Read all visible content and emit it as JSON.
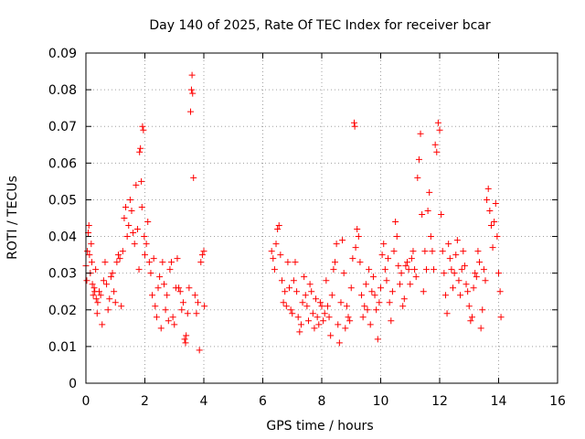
{
  "chart_data": {
    "type": "scatter",
    "title": "Day 140 of 2025, Rate Of TEC Index for receiver bcar",
    "xlabel": "GPS time / hours",
    "ylabel": "ROTI / TECUs",
    "xlim": [
      0,
      16
    ],
    "ylim": [
      0,
      0.09
    ],
    "x_ticks": [
      "0",
      "2",
      "4",
      "6",
      "8",
      "10",
      "12",
      "14",
      "16"
    ],
    "y_ticks": [
      "0",
      "0.01",
      "0.02",
      "0.03",
      "0.04",
      "0.05",
      "0.06",
      "0.07",
      "0.08",
      "0.09"
    ],
    "grid": true,
    "marker": "plus",
    "color": "#ff0000",
    "series": [
      {
        "points": [
          [
            0.0,
            0.032
          ],
          [
            0.03,
            0.028
          ],
          [
            0.05,
            0.036
          ],
          [
            0.08,
            0.041
          ],
          [
            0.1,
            0.043
          ],
          [
            0.12,
            0.035
          ],
          [
            0.15,
            0.03
          ],
          [
            0.18,
            0.038
          ],
          [
            0.2,
            0.033
          ],
          [
            0.22,
            0.027
          ],
          [
            0.25,
            0.024
          ],
          [
            0.28,
            0.026
          ],
          [
            0.3,
            0.025
          ],
          [
            0.33,
            0.031
          ],
          [
            0.35,
            0.023
          ],
          [
            0.38,
            0.019
          ],
          [
            0.4,
            0.022
          ],
          [
            0.45,
            0.025
          ],
          [
            0.5,
            0.024
          ],
          [
            0.55,
            0.016
          ],
          [
            0.6,
            0.028
          ],
          [
            0.65,
            0.033
          ],
          [
            0.7,
            0.027
          ],
          [
            0.75,
            0.02
          ],
          [
            0.8,
            0.023
          ],
          [
            0.85,
            0.029
          ],
          [
            0.9,
            0.03
          ],
          [
            0.95,
            0.025
          ],
          [
            1.0,
            0.022
          ],
          [
            1.05,
            0.033
          ],
          [
            1.1,
            0.035
          ],
          [
            1.15,
            0.034
          ],
          [
            1.2,
            0.021
          ],
          [
            1.25,
            0.036
          ],
          [
            1.3,
            0.045
          ],
          [
            1.35,
            0.048
          ],
          [
            1.4,
            0.04
          ],
          [
            1.45,
            0.043
          ],
          [
            1.5,
            0.05
          ],
          [
            1.55,
            0.047
          ],
          [
            1.6,
            0.041
          ],
          [
            1.65,
            0.038
          ],
          [
            1.7,
            0.054
          ],
          [
            1.75,
            0.042
          ],
          [
            1.8,
            0.031
          ],
          [
            1.82,
            0.063
          ],
          [
            1.85,
            0.064
          ],
          [
            1.88,
            0.055
          ],
          [
            1.9,
            0.048
          ],
          [
            1.92,
            0.07
          ],
          [
            1.95,
            0.069
          ],
          [
            1.98,
            0.04
          ],
          [
            2.0,
            0.035
          ],
          [
            2.05,
            0.038
          ],
          [
            2.1,
            0.044
          ],
          [
            2.15,
            0.033
          ],
          [
            2.2,
            0.03
          ],
          [
            2.25,
            0.024
          ],
          [
            2.3,
            0.034
          ],
          [
            2.35,
            0.021
          ],
          [
            2.4,
            0.018
          ],
          [
            2.45,
            0.026
          ],
          [
            2.5,
            0.029
          ],
          [
            2.55,
            0.015
          ],
          [
            2.6,
            0.033
          ],
          [
            2.65,
            0.027
          ],
          [
            2.7,
            0.02
          ],
          [
            2.75,
            0.024
          ],
          [
            2.8,
            0.017
          ],
          [
            2.85,
            0.031
          ],
          [
            2.9,
            0.033
          ],
          [
            2.95,
            0.018
          ],
          [
            3.0,
            0.016
          ],
          [
            3.05,
            0.026
          ],
          [
            3.1,
            0.034
          ],
          [
            3.15,
            0.026
          ],
          [
            3.2,
            0.025
          ],
          [
            3.25,
            0.02
          ],
          [
            3.3,
            0.022
          ],
          [
            3.35,
            0.012
          ],
          [
            3.38,
            0.011
          ],
          [
            3.4,
            0.013
          ],
          [
            3.45,
            0.019
          ],
          [
            3.5,
            0.026
          ],
          [
            3.55,
            0.074
          ],
          [
            3.58,
            0.08
          ],
          [
            3.6,
            0.084
          ],
          [
            3.62,
            0.079
          ],
          [
            3.65,
            0.056
          ],
          [
            3.7,
            0.024
          ],
          [
            3.75,
            0.019
          ],
          [
            3.8,
            0.022
          ],
          [
            3.85,
            0.009
          ],
          [
            3.9,
            0.033
          ],
          [
            3.95,
            0.035
          ],
          [
            4.0,
            0.036
          ],
          [
            4.02,
            0.021
          ],
          [
            6.3,
            0.036
          ],
          [
            6.35,
            0.034
          ],
          [
            6.4,
            0.031
          ],
          [
            6.45,
            0.038
          ],
          [
            6.5,
            0.042
          ],
          [
            6.55,
            0.043
          ],
          [
            6.6,
            0.035
          ],
          [
            6.65,
            0.028
          ],
          [
            6.7,
            0.022
          ],
          [
            6.75,
            0.025
          ],
          [
            6.8,
            0.021
          ],
          [
            6.85,
            0.033
          ],
          [
            6.9,
            0.026
          ],
          [
            6.95,
            0.02
          ],
          [
            7.0,
            0.019
          ],
          [
            7.05,
            0.028
          ],
          [
            7.1,
            0.033
          ],
          [
            7.15,
            0.025
          ],
          [
            7.2,
            0.018
          ],
          [
            7.25,
            0.014
          ],
          [
            7.3,
            0.016
          ],
          [
            7.35,
            0.022
          ],
          [
            7.4,
            0.029
          ],
          [
            7.45,
            0.024
          ],
          [
            7.5,
            0.021
          ],
          [
            7.55,
            0.017
          ],
          [
            7.6,
            0.027
          ],
          [
            7.65,
            0.025
          ],
          [
            7.7,
            0.019
          ],
          [
            7.75,
            0.015
          ],
          [
            7.8,
            0.023
          ],
          [
            7.85,
            0.018
          ],
          [
            7.9,
            0.016
          ],
          [
            7.95,
            0.022
          ],
          [
            8.0,
            0.021
          ],
          [
            8.05,
            0.017
          ],
          [
            8.1,
            0.019
          ],
          [
            8.15,
            0.028
          ],
          [
            8.2,
            0.021
          ],
          [
            8.25,
            0.018
          ],
          [
            8.3,
            0.013
          ],
          [
            8.35,
            0.024
          ],
          [
            8.4,
            0.031
          ],
          [
            8.45,
            0.033
          ],
          [
            8.5,
            0.038
          ],
          [
            8.55,
            0.016
          ],
          [
            8.6,
            0.011
          ],
          [
            8.65,
            0.022
          ],
          [
            8.7,
            0.039
          ],
          [
            8.75,
            0.03
          ],
          [
            8.8,
            0.015
          ],
          [
            8.85,
            0.021
          ],
          [
            8.9,
            0.018
          ],
          [
            8.95,
            0.017
          ],
          [
            9.0,
            0.026
          ],
          [
            9.05,
            0.034
          ],
          [
            9.1,
            0.071
          ],
          [
            9.12,
            0.07
          ],
          [
            9.15,
            0.037
          ],
          [
            9.2,
            0.042
          ],
          [
            9.25,
            0.04
          ],
          [
            9.3,
            0.033
          ],
          [
            9.35,
            0.024
          ],
          [
            9.4,
            0.018
          ],
          [
            9.45,
            0.021
          ],
          [
            9.5,
            0.027
          ],
          [
            9.55,
            0.02
          ],
          [
            9.6,
            0.031
          ],
          [
            9.65,
            0.016
          ],
          [
            9.7,
            0.025
          ],
          [
            9.75,
            0.029
          ],
          [
            9.8,
            0.024
          ],
          [
            9.85,
            0.02
          ],
          [
            9.9,
            0.012
          ],
          [
            9.95,
            0.022
          ],
          [
            10.0,
            0.026
          ],
          [
            10.05,
            0.035
          ],
          [
            10.1,
            0.038
          ],
          [
            10.15,
            0.031
          ],
          [
            10.2,
            0.028
          ],
          [
            10.25,
            0.034
          ],
          [
            10.3,
            0.022
          ],
          [
            10.35,
            0.017
          ],
          [
            10.4,
            0.025
          ],
          [
            10.45,
            0.036
          ],
          [
            10.5,
            0.044
          ],
          [
            10.55,
            0.04
          ],
          [
            10.6,
            0.032
          ],
          [
            10.65,
            0.027
          ],
          [
            10.7,
            0.03
          ],
          [
            10.75,
            0.021
          ],
          [
            10.8,
            0.023
          ],
          [
            10.85,
            0.032
          ],
          [
            10.9,
            0.033
          ],
          [
            10.95,
            0.031
          ],
          [
            11.0,
            0.027
          ],
          [
            11.05,
            0.034
          ],
          [
            11.1,
            0.036
          ],
          [
            11.15,
            0.031
          ],
          [
            11.2,
            0.029
          ],
          [
            11.25,
            0.056
          ],
          [
            11.3,
            0.061
          ],
          [
            11.35,
            0.068
          ],
          [
            11.4,
            0.046
          ],
          [
            11.45,
            0.025
          ],
          [
            11.5,
            0.036
          ],
          [
            11.55,
            0.031
          ],
          [
            11.6,
            0.047
          ],
          [
            11.65,
            0.052
          ],
          [
            11.7,
            0.04
          ],
          [
            11.75,
            0.036
          ],
          [
            11.8,
            0.031
          ],
          [
            11.85,
            0.065
          ],
          [
            11.9,
            0.063
          ],
          [
            11.95,
            0.071
          ],
          [
            12.0,
            0.069
          ],
          [
            12.05,
            0.046
          ],
          [
            12.1,
            0.036
          ],
          [
            12.15,
            0.03
          ],
          [
            12.2,
            0.024
          ],
          [
            12.25,
            0.019
          ],
          [
            12.3,
            0.038
          ],
          [
            12.35,
            0.034
          ],
          [
            12.4,
            0.031
          ],
          [
            12.45,
            0.026
          ],
          [
            12.5,
            0.03
          ],
          [
            12.55,
            0.035
          ],
          [
            12.6,
            0.039
          ],
          [
            12.65,
            0.028
          ],
          [
            12.7,
            0.024
          ],
          [
            12.75,
            0.031
          ],
          [
            12.8,
            0.036
          ],
          [
            12.85,
            0.032
          ],
          [
            12.9,
            0.027
          ],
          [
            12.95,
            0.025
          ],
          [
            13.0,
            0.021
          ],
          [
            13.05,
            0.017
          ],
          [
            13.1,
            0.018
          ],
          [
            13.15,
            0.026
          ],
          [
            13.2,
            0.03
          ],
          [
            13.25,
            0.029
          ],
          [
            13.3,
            0.036
          ],
          [
            13.35,
            0.033
          ],
          [
            13.4,
            0.015
          ],
          [
            13.45,
            0.02
          ],
          [
            13.5,
            0.031
          ],
          [
            13.55,
            0.028
          ],
          [
            13.6,
            0.05
          ],
          [
            13.65,
            0.053
          ],
          [
            13.7,
            0.047
          ],
          [
            13.75,
            0.043
          ],
          [
            13.8,
            0.037
          ],
          [
            13.85,
            0.044
          ],
          [
            13.9,
            0.049
          ],
          [
            13.95,
            0.04
          ],
          [
            14.0,
            0.03
          ],
          [
            14.05,
            0.025
          ],
          [
            14.08,
            0.018
          ]
        ]
      }
    ]
  }
}
